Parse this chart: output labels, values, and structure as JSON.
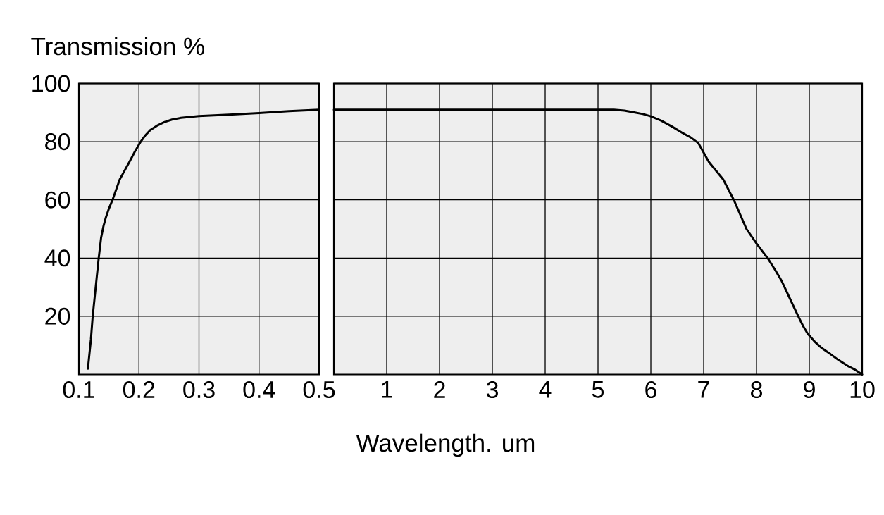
{
  "chart_data": [
    {
      "type": "line",
      "ylabel": "Transmission %",
      "xlim": [
        0.1,
        0.5
      ],
      "xticks": [
        0.1,
        0.2,
        0.3,
        0.4,
        0.5
      ],
      "ylim": [
        0,
        100
      ],
      "yticks": [
        20,
        40,
        60,
        80,
        100
      ],
      "grid": true,
      "series": [
        {
          "color": "#000000",
          "x": [
            0.115,
            0.12,
            0.123,
            0.128,
            0.133,
            0.137,
            0.141,
            0.145,
            0.15,
            0.156,
            0.162,
            0.168,
            0.176,
            0.184,
            0.193,
            0.203,
            0.21,
            0.219,
            0.23,
            0.242,
            0.255,
            0.27,
            0.285,
            0.3,
            0.35,
            0.4,
            0.45,
            0.5
          ],
          "values": [
            2,
            12,
            20,
            30,
            40,
            47,
            51,
            54,
            57,
            60,
            63.5,
            67,
            70,
            73,
            76.5,
            80,
            82,
            84,
            85.5,
            86.7,
            87.6,
            88.2,
            88.5,
            88.8,
            89.3,
            89.8,
            90.5,
            91
          ]
        }
      ]
    },
    {
      "type": "line",
      "xlabel": "Wavelength. um",
      "xlim": [
        0,
        10
      ],
      "xticks": [
        1,
        2,
        3,
        4,
        5,
        6,
        7,
        8,
        9,
        10
      ],
      "ylim": [
        0,
        100
      ],
      "yticks": [
        20,
        40,
        60,
        80,
        100
      ],
      "grid": true,
      "tick_labels": "x",
      "series": [
        {
          "color": "#000000",
          "x": [
            0,
            5.3,
            5.5,
            5.7,
            5.85,
            6,
            6.2,
            6.4,
            6.6,
            6.75,
            6.9,
            7.1,
            7.37,
            7.57,
            7.81,
            8,
            8.21,
            8.35,
            8.48,
            8.66,
            8.79,
            8.88,
            8.97,
            9.1,
            9.24,
            9.4,
            9.55,
            9.72,
            9.85,
            10
          ],
          "values": [
            91,
            91,
            90.7,
            90,
            89.5,
            88.7,
            87.2,
            85.2,
            83,
            81.5,
            79.5,
            73,
            67,
            60,
            50,
            45,
            40,
            36,
            32,
            25,
            20,
            16.7,
            14,
            11.3,
            9,
            7,
            5,
            3,
            1.8,
            0
          ]
        }
      ]
    }
  ]
}
